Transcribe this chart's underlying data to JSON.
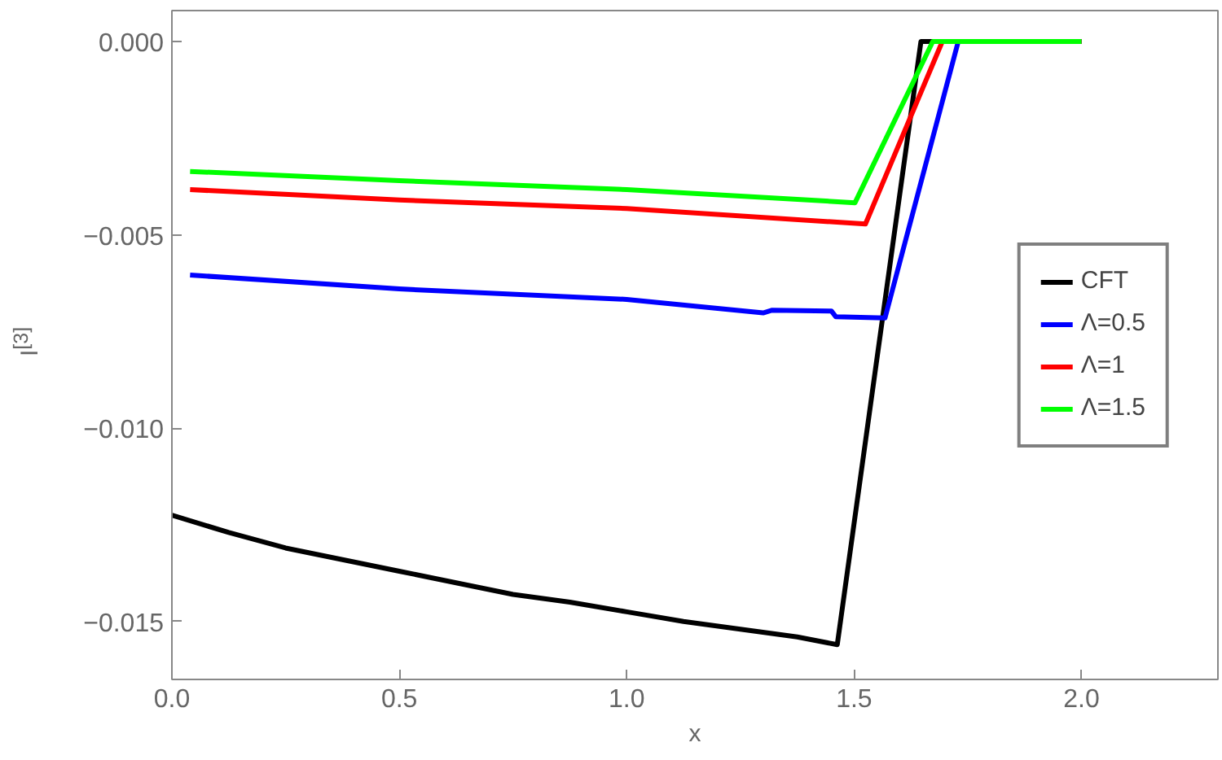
{
  "chart_data": {
    "type": "line",
    "xlabel": "x",
    "ylabel": "I$^{[3]}$",
    "xlim": [
      0,
      2.3
    ],
    "ylim": [
      -0.0165,
      0.0008
    ],
    "xticks": [
      {
        "value": 0,
        "label": "0.0"
      },
      {
        "value": 0.5,
        "label": "0.5"
      },
      {
        "value": 1,
        "label": "1.0"
      },
      {
        "value": 1.5,
        "label": "1.5"
      },
      {
        "value": 2,
        "label": "2.0"
      }
    ],
    "yticks": [
      {
        "value": 0,
        "label": "0.000"
      },
      {
        "value": -0.005,
        "label": "−0.005"
      },
      {
        "value": -0.01,
        "label": "−0.010"
      },
      {
        "value": -0.015,
        "label": "−0.015"
      }
    ],
    "grid": false,
    "legend": "right",
    "line_style": "solid",
    "series": [
      {
        "name": "CFT",
        "color": "#000000",
        "x": [
          0,
          0.125,
          0.25,
          0.375,
          0.5,
          0.625,
          0.75,
          0.875,
          1.0,
          1.125,
          1.25,
          1.375,
          1.463,
          1.647,
          2.0
        ],
        "values": [
          -0.01225,
          -0.0127,
          -0.0131,
          -0.0134,
          -0.0137,
          -0.014,
          -0.0143,
          -0.0145,
          -0.01475,
          -0.015,
          -0.0152,
          -0.0154,
          -0.0156,
          0,
          0
        ]
      },
      {
        "name": "Λ=0.5",
        "color": "#0000ff",
        "x": [
          0.04,
          0.5,
          1.0,
          1.3,
          1.32,
          1.45,
          1.46,
          1.568,
          1.729,
          2.0
        ],
        "values": [
          -0.00604,
          -0.0064,
          -0.00667,
          -0.00702,
          -0.00695,
          -0.00697,
          -0.00712,
          -0.00715,
          0,
          0
        ]
      },
      {
        "name": "Λ=1",
        "color": "#ff0000",
        "x": [
          0.04,
          0.5,
          1.0,
          1.525,
          1.694,
          2.0
        ],
        "values": [
          -0.00383,
          -0.0041,
          -0.00432,
          -0.00472,
          0,
          0
        ]
      },
      {
        "name": "Λ=1.5",
        "color": "#00ff00",
        "x": [
          0.04,
          0.5,
          1.0,
          1.502,
          1.673,
          2.0
        ],
        "values": [
          -0.00336,
          -0.0036,
          -0.00383,
          -0.00417,
          0,
          0
        ]
      }
    ]
  }
}
